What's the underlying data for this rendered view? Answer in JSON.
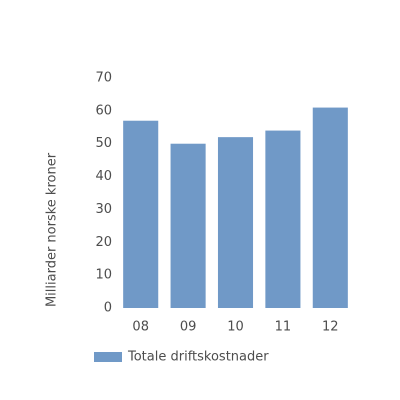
{
  "chart_data": {
    "type": "bar",
    "y_label": "Milliarder norske kroner",
    "categories": [
      "08",
      "09",
      "10",
      "11",
      "12"
    ],
    "series": [
      {
        "name": "Totale driftskostnader",
        "color": "#7099c7",
        "values": [
          57,
          50,
          52,
          54,
          61
        ]
      }
    ],
    "ylim": [
      0,
      70
    ],
    "yticks": [
      0,
      10,
      20,
      30,
      40,
      50,
      60,
      70
    ],
    "grid": false,
    "legend": "bottom"
  }
}
